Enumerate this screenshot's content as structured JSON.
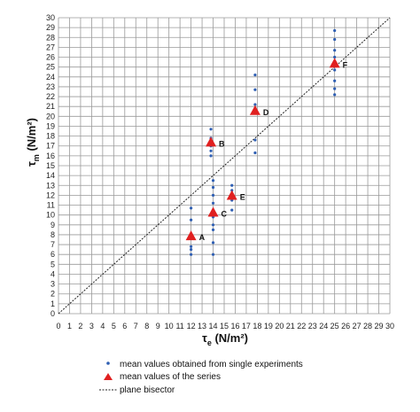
{
  "chart_data": {
    "type": "scatter",
    "x_axis": {
      "label_main": "τ",
      "label_sub": "e",
      "label_unit": " (N/m²)",
      "range": [
        0,
        30
      ],
      "ticks": [
        0,
        1,
        2,
        3,
        4,
        5,
        6,
        7,
        8,
        9,
        10,
        11,
        12,
        13,
        14,
        15,
        16,
        17,
        18,
        19,
        20,
        21,
        22,
        23,
        24,
        25,
        26,
        27,
        28,
        29,
        30
      ]
    },
    "y_axis": {
      "label_main": "τ",
      "label_sub": "m",
      "label_unit": " (N/m²)",
      "range": [
        0,
        30
      ],
      "ticks": [
        0,
        1,
        2,
        3,
        4,
        5,
        6,
        7,
        8,
        9,
        10,
        11,
        12,
        13,
        14,
        15,
        16,
        17,
        18,
        19,
        20,
        21,
        22,
        23,
        24,
        25,
        26,
        27,
        28,
        29,
        30
      ]
    },
    "grid": true,
    "series": [
      {
        "name": "mean values obtained from single experiments",
        "marker": "dot",
        "color": "#2f5fb3",
        "points": [
          [
            12,
            10.7
          ],
          [
            12,
            9.5
          ],
          [
            12,
            8.0
          ],
          [
            12,
            6.8
          ],
          [
            12,
            6.5
          ],
          [
            12,
            6.0
          ],
          [
            13.8,
            18.7
          ],
          [
            13.8,
            17.8
          ],
          [
            13.8,
            17.0
          ],
          [
            13.8,
            16.5
          ],
          [
            13.8,
            16.0
          ],
          [
            14,
            13.5
          ],
          [
            14,
            12.8
          ],
          [
            14,
            12.0
          ],
          [
            14,
            11.2
          ],
          [
            14,
            10.5
          ],
          [
            14,
            9.8
          ],
          [
            14,
            9.0
          ],
          [
            14,
            8.5
          ],
          [
            14,
            7.2
          ],
          [
            14,
            6.0
          ],
          [
            15.7,
            13.0
          ],
          [
            15.7,
            12.5
          ],
          [
            15.7,
            12.0
          ],
          [
            15.7,
            11.5
          ],
          [
            15.7,
            10.5
          ],
          [
            17.8,
            24.2
          ],
          [
            17.8,
            22.7
          ],
          [
            17.8,
            21.2
          ],
          [
            17.8,
            17.6
          ],
          [
            17.8,
            16.3
          ],
          [
            25,
            28.7
          ],
          [
            25,
            27.8
          ],
          [
            25,
            26.7
          ],
          [
            25,
            26.0
          ],
          [
            25,
            24.7
          ],
          [
            25,
            23.6
          ],
          [
            25,
            22.8
          ],
          [
            25,
            22.2
          ]
        ]
      },
      {
        "name": "mean values of the series",
        "marker": "triangle",
        "color": "#e02020",
        "points": [
          {
            "x": 12,
            "y": 7.8,
            "label": "A"
          },
          {
            "x": 13.8,
            "y": 17.3,
            "label": "B"
          },
          {
            "x": 14,
            "y": 10.2,
            "label": "C"
          },
          {
            "x": 17.8,
            "y": 20.5,
            "label": "D"
          },
          {
            "x": 15.7,
            "y": 11.9,
            "label": "E"
          },
          {
            "x": 25,
            "y": 25.3,
            "label": "F"
          }
        ]
      },
      {
        "name": "plane bisector",
        "marker": "dashed-line",
        "color": "#222222",
        "points": [
          [
            0,
            0
          ],
          [
            30,
            30
          ]
        ]
      }
    ],
    "legend_position": "bottom"
  }
}
